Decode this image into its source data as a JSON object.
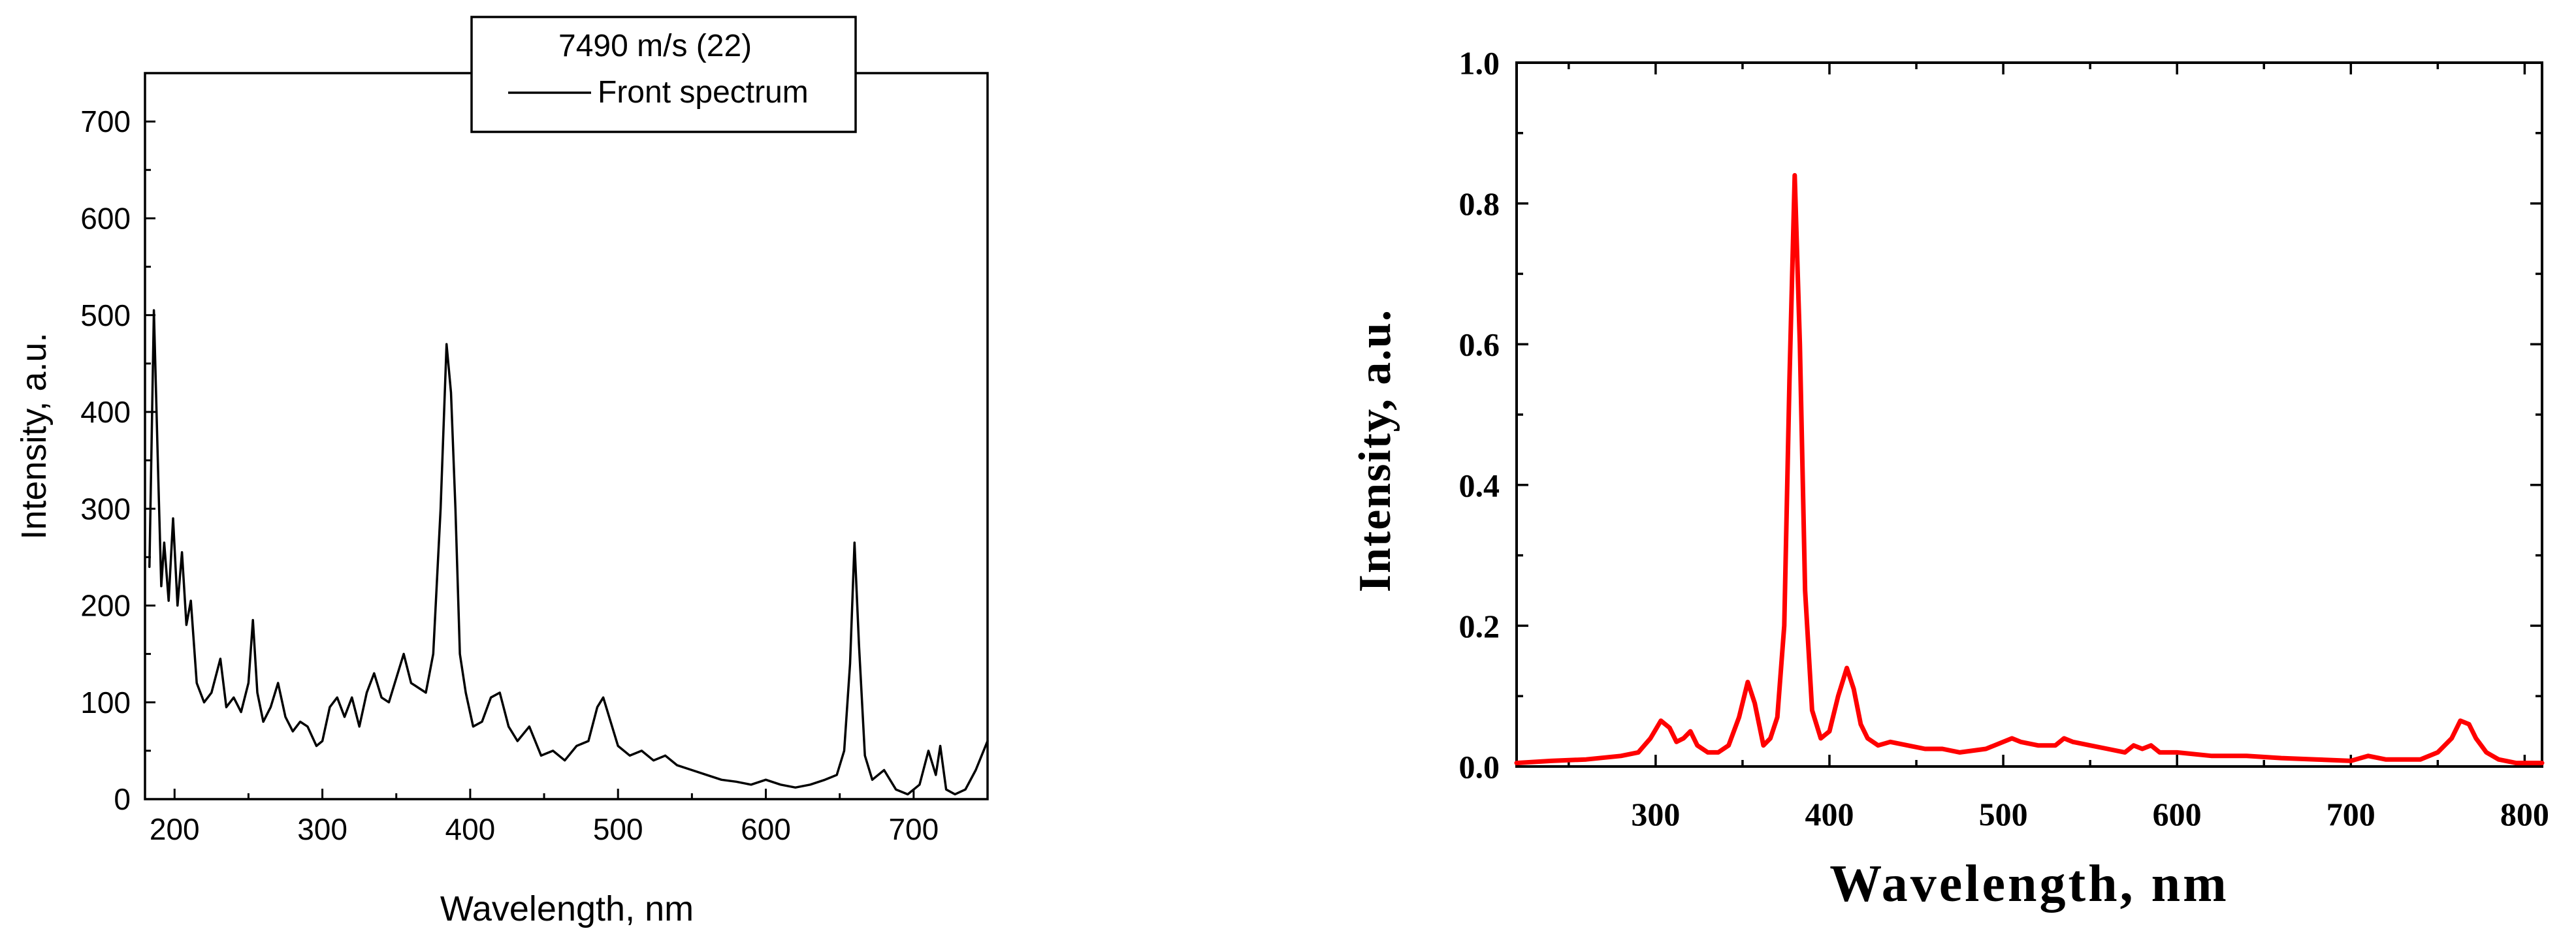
{
  "chart_data": [
    {
      "type": "line",
      "xlabel": "Wavelength, nm",
      "ylabel": "Intensity, a.u.",
      "xlim": [
        180,
        750
      ],
      "ylim": [
        0,
        750
      ],
      "xticks": [
        200,
        300,
        400,
        500,
        600,
        700
      ],
      "yticks": [
        0,
        100,
        200,
        300,
        400,
        500,
        600,
        700
      ],
      "grid": false,
      "legend": {
        "position": "top-center",
        "title": "7490 m/s (22)",
        "entries": [
          "Front spectrum"
        ]
      },
      "series": [
        {
          "name": "Front spectrum",
          "color": "#000000",
          "x": [
            183,
            186,
            189,
            191,
            193,
            196,
            199,
            202,
            205,
            208,
            211,
            215,
            220,
            225,
            231,
            235,
            240,
            245,
            250,
            253,
            256,
            260,
            265,
            270,
            275,
            280,
            285,
            290,
            296,
            300,
            305,
            310,
            315,
            320,
            325,
            330,
            335,
            340,
            345,
            350,
            355,
            360,
            365,
            370,
            375,
            380,
            384,
            387,
            390,
            393,
            397,
            402,
            408,
            414,
            420,
            426,
            432,
            440,
            448,
            456,
            464,
            472,
            480,
            486,
            490,
            495,
            500,
            508,
            516,
            524,
            532,
            540,
            550,
            560,
            570,
            580,
            590,
            600,
            610,
            620,
            630,
            640,
            648,
            653,
            657,
            660,
            663,
            667,
            672,
            680,
            688,
            696,
            704,
            710,
            715,
            718,
            722,
            728,
            735,
            742,
            750
          ],
          "y": [
            240,
            505,
            330,
            220,
            265,
            205,
            290,
            200,
            255,
            180,
            205,
            120,
            100,
            110,
            145,
            95,
            105,
            90,
            120,
            185,
            110,
            80,
            95,
            120,
            85,
            70,
            80,
            75,
            55,
            60,
            95,
            105,
            85,
            105,
            75,
            110,
            130,
            105,
            100,
            125,
            150,
            120,
            115,
            110,
            150,
            300,
            470,
            420,
            300,
            150,
            110,
            75,
            80,
            105,
            110,
            75,
            60,
            75,
            45,
            50,
            40,
            55,
            60,
            95,
            105,
            80,
            55,
            45,
            50,
            40,
            45,
            35,
            30,
            25,
            20,
            18,
            15,
            20,
            15,
            12,
            15,
            20,
            25,
            50,
            140,
            265,
            160,
            45,
            20,
            30,
            10,
            5,
            15,
            50,
            25,
            55,
            10,
            5,
            10,
            30,
            60
          ]
        }
      ]
    },
    {
      "type": "line",
      "xlabel": "Wavelength, nm",
      "ylabel": "Intensity, a.u.",
      "xlim": [
        220,
        810
      ],
      "ylim": [
        0,
        1.0
      ],
      "xticks": [
        300,
        400,
        500,
        600,
        700,
        800
      ],
      "yticks": [
        0.0,
        0.2,
        0.4,
        0.6,
        0.8,
        1.0
      ],
      "ytick_labels": [
        "0.0",
        "0.2",
        "0.4",
        "0.6",
        "0.8",
        "1.0"
      ],
      "grid": false,
      "series": [
        {
          "color": "#ff0000",
          "x": [
            220,
            240,
            260,
            280,
            290,
            297,
            303,
            308,
            312,
            316,
            320,
            324,
            330,
            336,
            342,
            348,
            353,
            357,
            362,
            366,
            370,
            374,
            377,
            380,
            383,
            386,
            390,
            395,
            400,
            405,
            410,
            414,
            418,
            422,
            428,
            435,
            445,
            455,
            465,
            475,
            490,
            500,
            505,
            510,
            520,
            530,
            535,
            540,
            550,
            560,
            570,
            575,
            580,
            585,
            590,
            600,
            620,
            640,
            660,
            680,
            700,
            710,
            720,
            740,
            750,
            758,
            763,
            768,
            772,
            778,
            785,
            795,
            810
          ],
          "y": [
            0.005,
            0.008,
            0.01,
            0.015,
            0.02,
            0.04,
            0.065,
            0.055,
            0.035,
            0.04,
            0.05,
            0.03,
            0.02,
            0.02,
            0.03,
            0.07,
            0.12,
            0.09,
            0.03,
            0.04,
            0.07,
            0.2,
            0.55,
            0.84,
            0.6,
            0.25,
            0.08,
            0.04,
            0.05,
            0.1,
            0.14,
            0.11,
            0.06,
            0.04,
            0.03,
            0.035,
            0.03,
            0.025,
            0.025,
            0.02,
            0.025,
            0.035,
            0.04,
            0.035,
            0.03,
            0.03,
            0.04,
            0.035,
            0.03,
            0.025,
            0.02,
            0.03,
            0.025,
            0.03,
            0.02,
            0.02,
            0.015,
            0.015,
            0.012,
            0.01,
            0.008,
            0.015,
            0.01,
            0.01,
            0.02,
            0.04,
            0.065,
            0.06,
            0.04,
            0.02,
            0.01,
            0.005,
            0.005
          ]
        }
      ]
    }
  ]
}
